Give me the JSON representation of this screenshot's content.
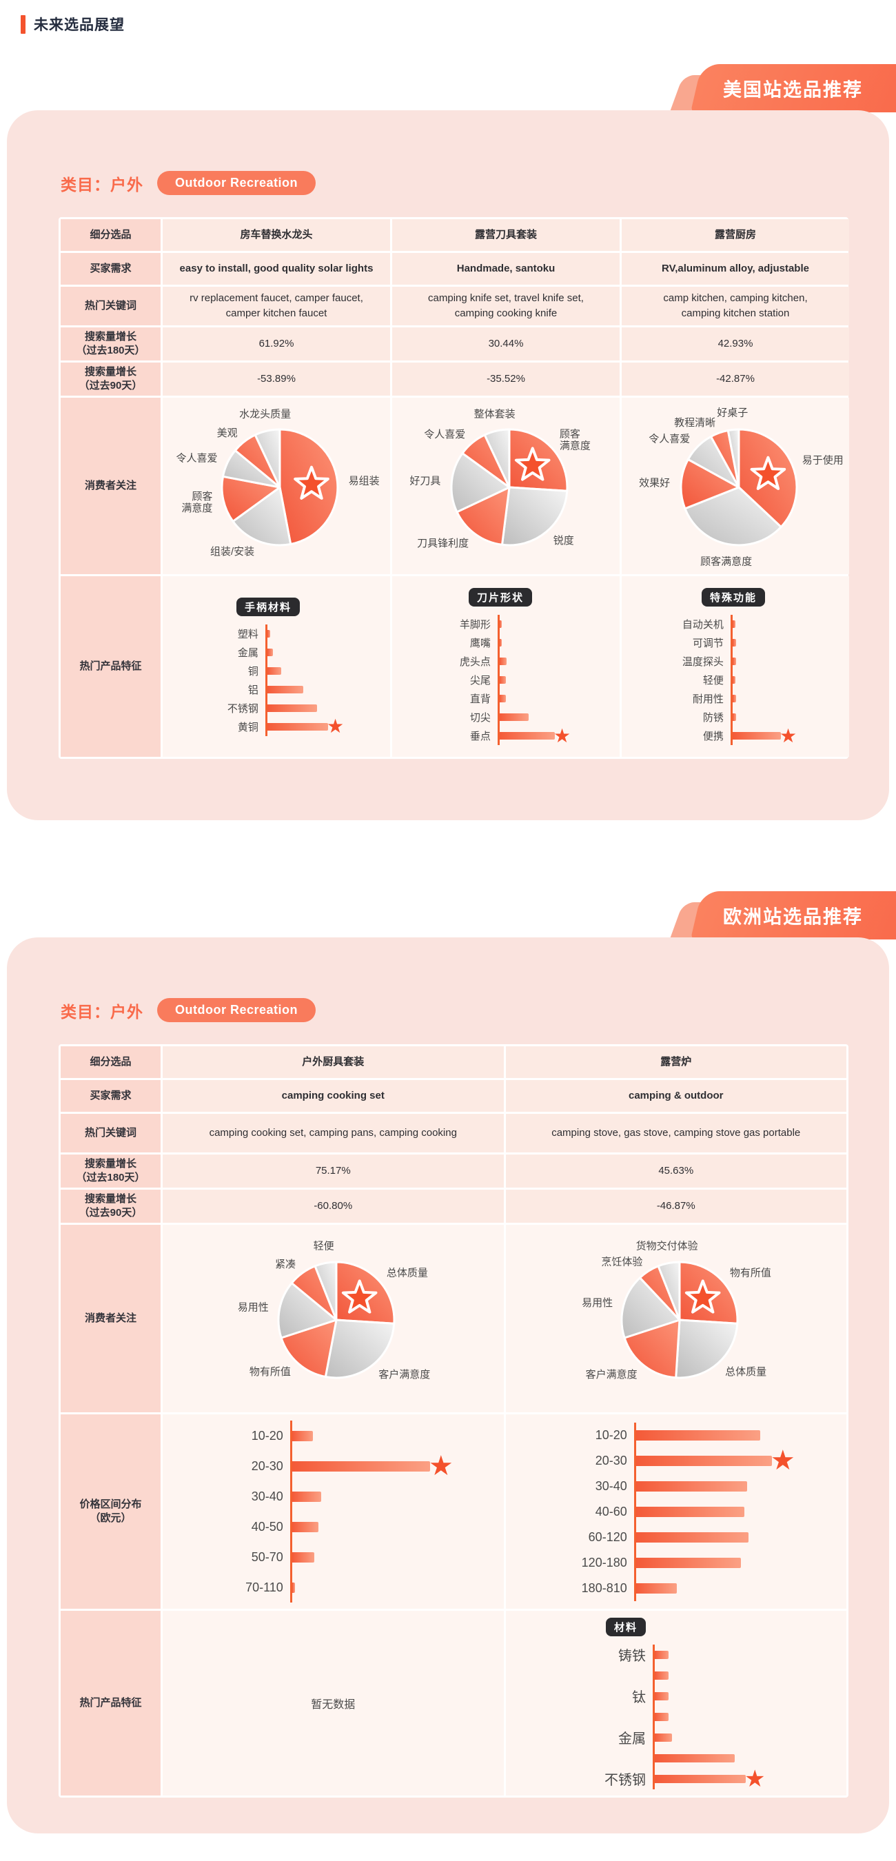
{
  "page_title": "未来选品展望",
  "colors": {
    "accent": "#F96A4B",
    "accent_dark": "#F4512C",
    "card_bg": "#FAE3DE",
    "label_cell_bg": "#FBD8CF",
    "text_cell_bg": "#FCEAE3",
    "chart_cell_bg": "#FEF5F1",
    "gray_slice": "#CFCFCF",
    "badge_bg": "#2B2B2E",
    "title_text": "#242C3E"
  },
  "sections": [
    {
      "id": "us",
      "ribbon_label": "美国站选品推荐",
      "category_label": "类目：户外",
      "category_pill": "Outdoor Recreation",
      "row_labels": {
        "product": "细分选品",
        "demand": "买家需求",
        "keywords": "热门关键词",
        "growth180": "搜索量增长\n（过去180天）",
        "growth90": "搜索量增长\n（过去90天）",
        "focus": "消费者关注",
        "features": "热门产品特征"
      },
      "columns": [
        {
          "name": "房车替换水龙头",
          "demand": "easy to install, good quality solar lights",
          "keywords": "rv replacement faucet, camper faucet,\ncamper kitchen faucet",
          "growth180": "61.92%",
          "growth90": "-53.89%",
          "pie": "us_pie_faucet",
          "feature": "us_bar_handle"
        },
        {
          "name": "露营刀具套装",
          "demand": "Handmade, santoku",
          "keywords": "camping knife set, travel knife set,\ncamping cooking knife",
          "growth180": "30.44%",
          "growth90": "-35.52%",
          "pie": "us_pie_knife",
          "feature": "us_bar_blade"
        },
        {
          "name": "露营厨房",
          "demand": "RV,aluminum alloy, adjustable",
          "keywords": "camp kitchen, camping kitchen,\ncamping kitchen station",
          "growth180": "42.93%",
          "growth90": "-42.87%",
          "pie": "us_pie_kitchen",
          "feature": "us_bar_function"
        }
      ]
    },
    {
      "id": "eu",
      "ribbon_label": "欧洲站选品推荐",
      "category_label": "类目：户外",
      "category_pill": "Outdoor Recreation",
      "row_labels": {
        "product": "细分选品",
        "demand": "买家需求",
        "keywords": "热门关键词",
        "growth180": "搜索量增长\n（过去180天）",
        "growth90": "搜索量增长\n（过去90天）",
        "focus": "消费者关注",
        "price": "价格区间分布\n（欧元）",
        "features": "热门产品特征"
      },
      "columns": [
        {
          "name": "户外厨具套装",
          "demand": "camping cooking set",
          "keywords": "camping cooking set, camping pans, camping cooking",
          "growth180": "75.17%",
          "growth90": "-60.80%",
          "pie": "eu_pie_cookset",
          "price": "eu_bar_price_cookset",
          "feature": null,
          "feature_empty": "暂无数据"
        },
        {
          "name": "露营炉",
          "demand": "camping & outdoor",
          "keywords": "camping stove, gas stove, camping stove gas portable",
          "growth180": "45.63%",
          "growth90": "-46.87%",
          "pie": "eu_pie_stove",
          "price": "eu_bar_price_stove",
          "feature": "eu_bar_material"
        }
      ]
    }
  ],
  "chart_data": {
    "us_pie_faucet": {
      "type": "pie",
      "title": "消费者关注-房车替换水龙头",
      "slices": [
        {
          "label": "易组装",
          "value": 47,
          "star": true
        },
        {
          "label": "组装/安装",
          "value": 18
        },
        {
          "label": "顾客\n满意度",
          "value": 13
        },
        {
          "label": "令人喜爱",
          "value": 8
        },
        {
          "label": "美观",
          "value": 7
        },
        {
          "label": "水龙头质量",
          "value": 7
        }
      ]
    },
    "us_pie_knife": {
      "type": "pie",
      "title": "消费者关注-露营刀具套装",
      "slices": [
        {
          "label": "顾客\n满意度",
          "value": 26,
          "star": true
        },
        {
          "label": "锐度",
          "value": 26
        },
        {
          "label": "刀具锋利度",
          "value": 16
        },
        {
          "label": "好刀具",
          "value": 17
        },
        {
          "label": "令人喜爱",
          "value": 8
        },
        {
          "label": "整体套装",
          "value": 7
        }
      ]
    },
    "us_pie_kitchen": {
      "type": "pie",
      "title": "消费者关注-露营厨房",
      "slices": [
        {
          "label": "易于使用",
          "value": 37,
          "star": true
        },
        {
          "label": "顾客满意度",
          "value": 32
        },
        {
          "label": "效果好",
          "value": 14
        },
        {
          "label": "令人喜爱",
          "value": 9
        },
        {
          "label": "教程清晰",
          "value": 5
        },
        {
          "label": "好桌子",
          "value": 3
        }
      ]
    },
    "eu_pie_cookset": {
      "type": "pie",
      "title": "消费者关注-户外厨具套装",
      "slices": [
        {
          "label": "总体质量",
          "value": 26,
          "star": true
        },
        {
          "label": "客户满意度",
          "value": 27
        },
        {
          "label": "物有所值",
          "value": 17
        },
        {
          "label": "易用性",
          "value": 16
        },
        {
          "label": "紧凑",
          "value": 8
        },
        {
          "label": "轻便",
          "value": 6
        }
      ]
    },
    "eu_pie_stove": {
      "type": "pie",
      "title": "消费者关注-露营炉",
      "slices": [
        {
          "label": "物有所值",
          "value": 26,
          "star": true
        },
        {
          "label": "总体质量",
          "value": 25
        },
        {
          "label": "客户满意度",
          "value": 19
        },
        {
          "label": "易用性",
          "value": 18
        },
        {
          "label": "烹饪体验",
          "value": 6
        },
        {
          "label": "货物交付体验",
          "value": 6
        }
      ]
    },
    "us_bar_handle": {
      "type": "bar",
      "badge": "手柄材料",
      "items": [
        {
          "label": "塑料",
          "value": 4
        },
        {
          "label": "金属",
          "value": 8
        },
        {
          "label": "铜",
          "value": 20
        },
        {
          "label": "铝",
          "value": 52
        },
        {
          "label": "不锈钢",
          "value": 72
        },
        {
          "label": "黄铜",
          "value": 88,
          "star": true
        }
      ]
    },
    "us_bar_blade": {
      "type": "bar",
      "badge": "刀片形状",
      "items": [
        {
          "label": "羊脚形",
          "value": 3
        },
        {
          "label": "鹰嘴",
          "value": 3
        },
        {
          "label": "虎头点",
          "value": 10
        },
        {
          "label": "尖尾",
          "value": 9
        },
        {
          "label": "直背",
          "value": 9
        },
        {
          "label": "切尖",
          "value": 42
        },
        {
          "label": "垂点",
          "value": 80,
          "star": true
        }
      ]
    },
    "us_bar_function": {
      "type": "bar",
      "badge": "特殊功能",
      "items": [
        {
          "label": "自动关机",
          "value": 4
        },
        {
          "label": "可调节",
          "value": 5
        },
        {
          "label": "温度探头",
          "value": 5
        },
        {
          "label": "轻便",
          "value": 4
        },
        {
          "label": "耐用性",
          "value": 5
        },
        {
          "label": "防锈",
          "value": 5
        },
        {
          "label": "便携",
          "value": 70,
          "star": true
        }
      ]
    },
    "eu_bar_price_cookset": {
      "type": "bar",
      "badge": "",
      "items": [
        {
          "label": "10-20",
          "value": 15
        },
        {
          "label": "20-30",
          "value": 100,
          "star": true
        },
        {
          "label": "30-40",
          "value": 21
        },
        {
          "label": "40-50",
          "value": 19
        },
        {
          "label": "50-70",
          "value": 16
        },
        {
          "label": "70-110",
          "value": 2
        }
      ]
    },
    "eu_bar_price_stove": {
      "type": "bar",
      "badge": "",
      "items": [
        {
          "label": "10-20",
          "value": 85
        },
        {
          "label": "20-30",
          "value": 93,
          "star": true
        },
        {
          "label": "30-40",
          "value": 76
        },
        {
          "label": "40-60",
          "value": 74
        },
        {
          "label": "60-120",
          "value": 77
        },
        {
          "label": "120-180",
          "value": 72
        },
        {
          "label": "180-810",
          "value": 28
        }
      ]
    },
    "eu_bar_material": {
      "type": "bar",
      "badge": "材料",
      "items": [
        {
          "label": "铸铁",
          "value": 15
        },
        {
          "label": "",
          "value": 15
        },
        {
          "label": "钛",
          "value": 15
        },
        {
          "label": "",
          "value": 15
        },
        {
          "label": "金属",
          "value": 19
        },
        {
          "label": "",
          "value": 88
        },
        {
          "label": "不锈钢",
          "value": 100,
          "star": true
        }
      ]
    }
  }
}
